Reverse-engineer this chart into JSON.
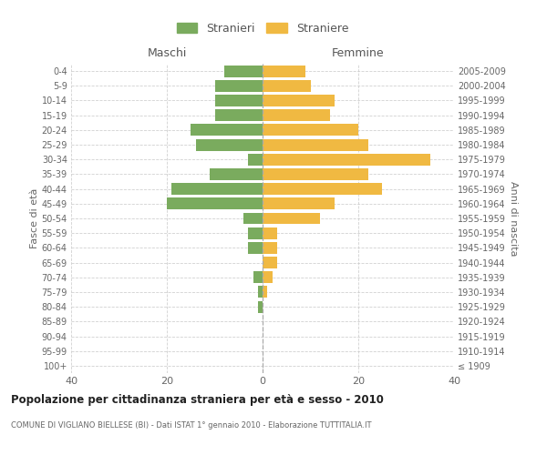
{
  "age_groups": [
    "100+",
    "95-99",
    "90-94",
    "85-89",
    "80-84",
    "75-79",
    "70-74",
    "65-69",
    "60-64",
    "55-59",
    "50-54",
    "45-49",
    "40-44",
    "35-39",
    "30-34",
    "25-29",
    "20-24",
    "15-19",
    "10-14",
    "5-9",
    "0-4"
  ],
  "birth_years": [
    "≤ 1909",
    "1910-1914",
    "1915-1919",
    "1920-1924",
    "1925-1929",
    "1930-1934",
    "1935-1939",
    "1940-1944",
    "1945-1949",
    "1950-1954",
    "1955-1959",
    "1960-1964",
    "1965-1969",
    "1970-1974",
    "1975-1979",
    "1980-1984",
    "1985-1989",
    "1990-1994",
    "1995-1999",
    "2000-2004",
    "2005-2009"
  ],
  "maschi": [
    0,
    0,
    0,
    0,
    1,
    1,
    2,
    0,
    3,
    3,
    4,
    20,
    19,
    11,
    3,
    14,
    15,
    10,
    10,
    10,
    8
  ],
  "femmine": [
    0,
    0,
    0,
    0,
    0,
    1,
    2,
    3,
    3,
    3,
    12,
    15,
    25,
    22,
    35,
    22,
    20,
    14,
    15,
    10,
    9
  ],
  "maschi_color": "#7aab5e",
  "femmine_color": "#f0b942",
  "background_color": "#ffffff",
  "grid_color": "#cccccc",
  "title": "Popolazione per cittadinanza straniera per età e sesso - 2010",
  "subtitle": "COMUNE DI VIGLIANO BIELLESE (BI) - Dati ISTAT 1° gennaio 2010 - Elaborazione TUTTITALIA.IT",
  "ylabel_left": "Fasce di età",
  "ylabel_right": "Anni di nascita",
  "legend_maschi": "Stranieri",
  "legend_femmine": "Straniere",
  "xlim": 40,
  "maschi_label": "Maschi",
  "femmine_label": "Femmine"
}
